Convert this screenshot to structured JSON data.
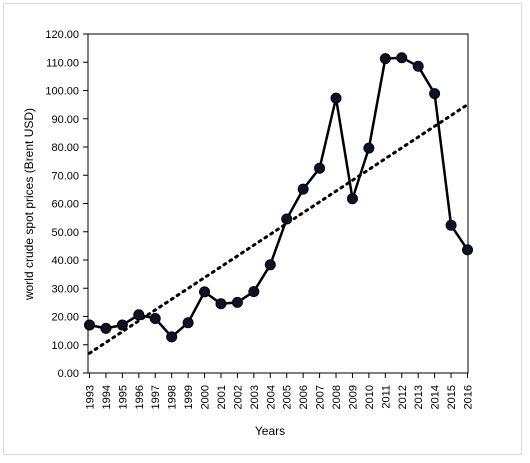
{
  "chart_data": {
    "type": "line",
    "xlabel": "Years",
    "ylabel": "world crude spot prices (Brent USD)",
    "ylim": [
      0,
      120
    ],
    "yticks": [
      "0.00",
      "10.00",
      "20.00",
      "30.00",
      "40.00",
      "50.00",
      "60.00",
      "70.00",
      "80.00",
      "90.00",
      "100.00",
      "110.00",
      "120.00"
    ],
    "categories": [
      "1993",
      "1994",
      "1995",
      "1996",
      "1997",
      "1998",
      "1999",
      "2000",
      "2001",
      "2002",
      "2003",
      "2004",
      "2005",
      "2006",
      "2007",
      "2008",
      "2009",
      "2010",
      "2011",
      "2012",
      "2013",
      "2014",
      "2015",
      "2016"
    ],
    "series": [
      {
        "values": [
          17.0,
          15.8,
          17.0,
          20.6,
          19.3,
          12.8,
          17.8,
          28.7,
          24.5,
          25.0,
          28.8,
          38.3,
          54.5,
          65.1,
          72.5,
          97.3,
          61.7,
          79.6,
          111.3,
          111.6,
          108.6,
          98.9,
          52.3,
          43.6
        ],
        "style": "solid-with-markers",
        "color": "#000000",
        "marker_fill": "#0d1226"
      },
      {
        "trendline": true,
        "style": "dotted",
        "color": "#000000",
        "start_value": 7.0,
        "end_value": 95.0
      }
    ],
    "grid": false,
    "legend": "none"
  }
}
